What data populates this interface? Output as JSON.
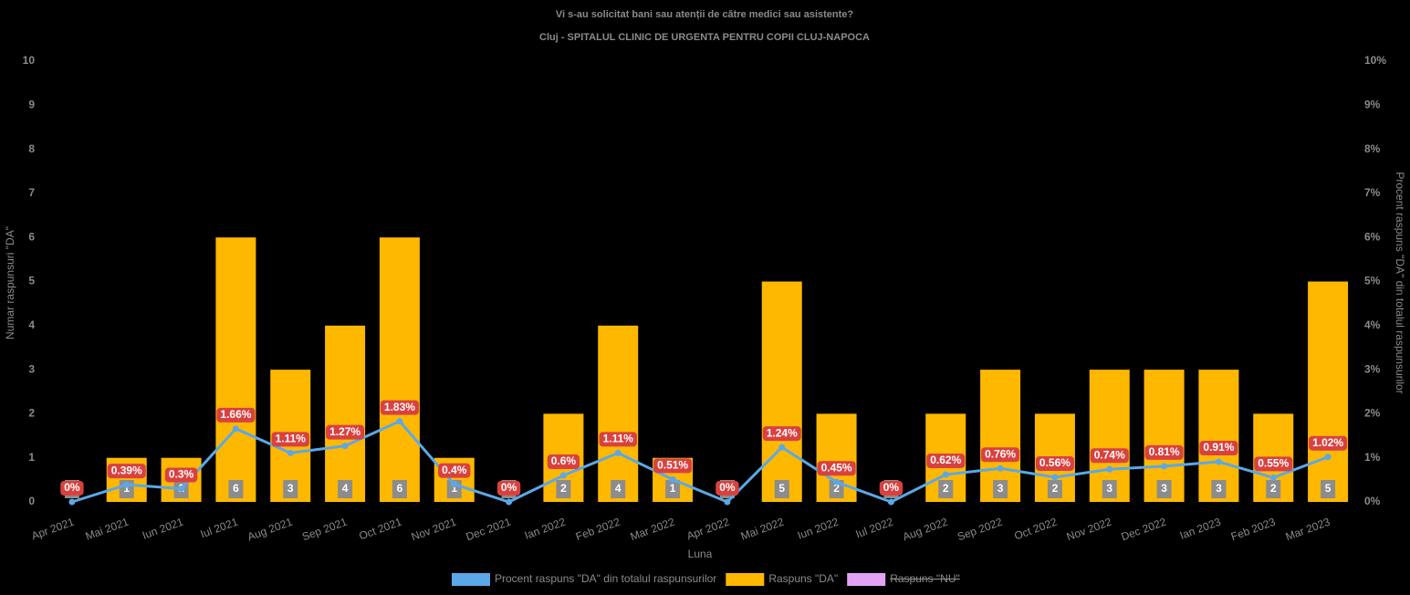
{
  "chart_data": {
    "type": "bar-line",
    "title": "Vi s-au solicitat bani sau atenții de către medici sau asistente?",
    "subtitle": "Cluj - SPITALUL CLINIC DE URGENTA PENTRU COPII CLUJ-NAPOCA",
    "x_label": "Luna",
    "y_label": "Numar raspunsuri \"DA\"",
    "y2_label": "Procent raspuns \"DA\" din totalul raspunsurilor",
    "categories": [
      "Apr 2021",
      "Mai 2021",
      "Iun 2021",
      "Iul 2021",
      "Aug 2021",
      "Sep 2021",
      "Oct 2021",
      "Nov 2021",
      "Dec 2021",
      "Ian 2022",
      "Feb 2022",
      "Mar 2022",
      "Apr 2022",
      "Mai 2022",
      "Iun 2022",
      "Iul 2022",
      "Aug 2022",
      "Sep 2022",
      "Oct 2022",
      "Nov 2022",
      "Dec 2022",
      "Ian 2023",
      "Feb 2023",
      "Mar 2023"
    ],
    "series": [
      {
        "name": "Procent raspuns \"DA\" din totalul raspunsurilor",
        "type": "line",
        "axis": "y2",
        "color": "#5ba8e8",
        "values": [
          0,
          0.39,
          0.3,
          1.66,
          1.11,
          1.27,
          1.83,
          0.4,
          0,
          0.6,
          1.11,
          0.51,
          0,
          1.24,
          0.45,
          0,
          0.62,
          0.76,
          0.56,
          0.74,
          0.81,
          0.91,
          0.55,
          1.02
        ],
        "value_labels": [
          "0%",
          "0.39%",
          "0.3%",
          "1.66%",
          "1.11%",
          "1.27%",
          "1.83%",
          "0.4%",
          "0%",
          "0.6%",
          "1.11%",
          "0.51%",
          "0%",
          "1.24%",
          "0.45%",
          "0%",
          "0.62%",
          "0.76%",
          "0.56%",
          "0.74%",
          "0.81%",
          "0.91%",
          "0.55%",
          "1.02%"
        ]
      },
      {
        "name": "Raspuns \"DA\"",
        "type": "bar",
        "color": "#ffb800",
        "values": [
          0,
          1,
          1,
          6,
          3,
          4,
          6,
          1,
          0,
          2,
          4,
          1,
          0,
          5,
          2,
          0,
          2,
          3,
          2,
          3,
          3,
          3,
          2,
          5
        ]
      },
      {
        "name": "Raspuns \"NU\"",
        "type": "bar",
        "color": "#e3a3f5",
        "hidden": true
      }
    ],
    "ylim": [
      0,
      10
    ],
    "yticks": [
      0,
      1,
      2,
      3,
      4,
      5,
      6,
      7,
      8,
      9,
      10
    ],
    "y2lim": [
      0,
      10
    ],
    "y2ticks": [
      {
        "value": 0,
        "label": "0%"
      },
      {
        "value": 1,
        "label": "1%"
      },
      {
        "value": 2,
        "label": "2%"
      },
      {
        "value": 3,
        "label": "3%"
      },
      {
        "value": 4,
        "label": "4%"
      },
      {
        "value": 5,
        "label": "5%"
      },
      {
        "value": 6,
        "label": "6%"
      },
      {
        "value": 7,
        "label": "7%"
      },
      {
        "value": 8,
        "label": "8%"
      },
      {
        "value": 9,
        "label": "9%"
      },
      {
        "value": 10,
        "label": "10%"
      }
    ],
    "legend": "bottom"
  }
}
